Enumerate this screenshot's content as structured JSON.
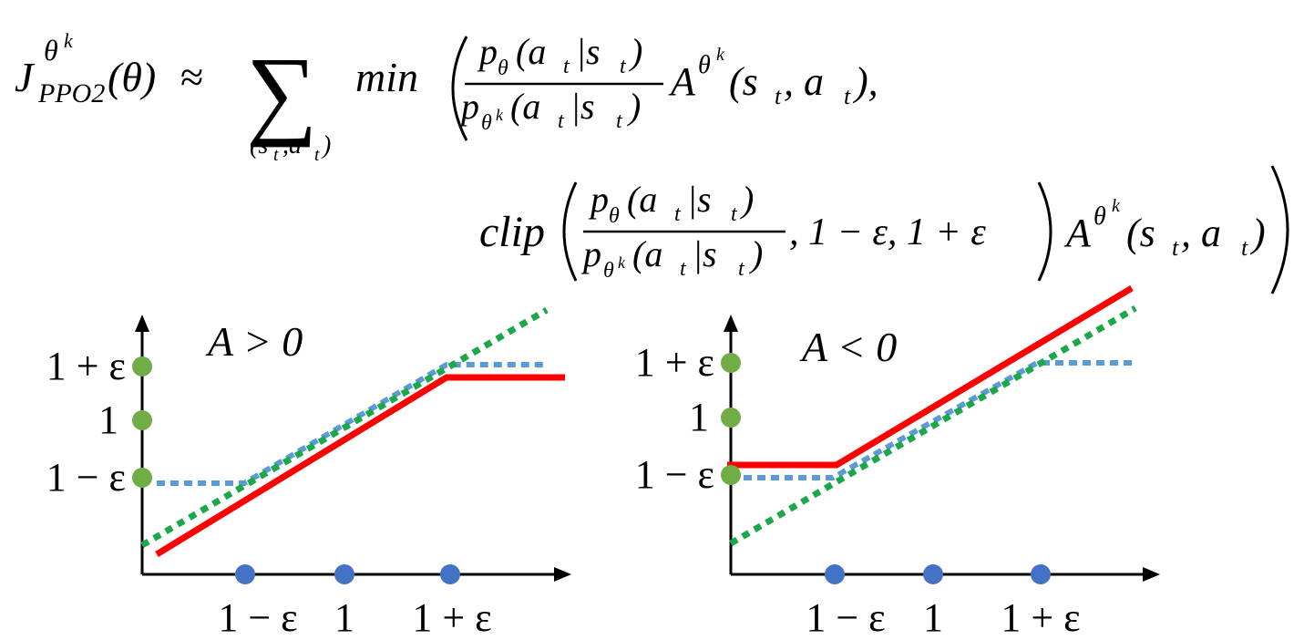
{
  "formula": {
    "J": "J",
    "J_sup": "θ",
    "J_supsup": "k",
    "J_sub": "PPO2",
    "J_arg": "(θ)",
    "approx": "≈",
    "sum": "∑",
    "sum_sub_pre": "(s",
    "sum_sub_t": "t",
    "sum_sub_comma_a": ",a",
    "sum_sub_t2": "t",
    "sum_sub_close": ")",
    "min": "min",
    "num_p": "p",
    "num_theta": "θ",
    "num_arg_open": "(a",
    "num_t1": "t",
    "num_bar_s": "|s",
    "num_t2": "t",
    "num_close": ")",
    "den_p": "p",
    "den_theta": "θ",
    "den_k": "k",
    "den_arg_open": "(a",
    "den_t1": "t",
    "den_bar_s": "|s",
    "den_t2": "t",
    "den_close": ")",
    "A": "A",
    "A_theta": "θ",
    "A_k": "k",
    "A_arg_open": "(s",
    "A_t1": "t",
    "A_mid": ", a",
    "A_t2": "t",
    "A_close": "),",
    "clip": "clip",
    "clip_tail": ", 1 − ε, 1 + ε",
    "A2_close": ")"
  },
  "panels": [
    {
      "title": "A > 0",
      "y_ticks": [
        "1 + ε",
        "1",
        "1 − ε"
      ],
      "x_ticks": [
        "1 − ε",
        "1",
        "1 + ε"
      ]
    },
    {
      "title": "A < 0",
      "y_ticks": [
        "1 + ε",
        "1",
        "1 − ε"
      ],
      "x_ticks": [
        "1 − ε",
        "1",
        "1 + ε"
      ]
    }
  ],
  "colors": {
    "red": "#ff0000",
    "green_dotted": "#1aa84a",
    "blue_dotted": "#5b9bd5",
    "green_dot": "#70ad47",
    "blue_dot": "#4472c4"
  }
}
